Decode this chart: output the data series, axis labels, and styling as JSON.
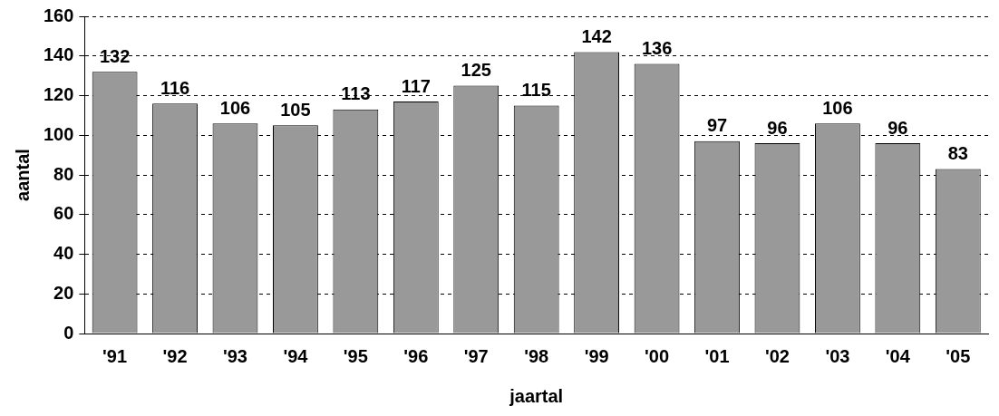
{
  "chart_data": {
    "type": "bar",
    "xlabel": "jaartal",
    "ylabel": "aantal",
    "categories": [
      "'91",
      "'92",
      "'93",
      "'94",
      "'95",
      "'96",
      "'97",
      "'98",
      "'99",
      "'00",
      "'01",
      "'02",
      "'03",
      "'04",
      "'05"
    ],
    "values": [
      132,
      116,
      106,
      105,
      113,
      117,
      125,
      115,
      142,
      136,
      97,
      96,
      106,
      96,
      83
    ],
    "color": "#999999",
    "ylim": [
      0,
      160
    ],
    "yticks": [
      0,
      20,
      40,
      60,
      80,
      100,
      120,
      140,
      160
    ],
    "grid": "y",
    "data_labels": true,
    "legend": false
  }
}
